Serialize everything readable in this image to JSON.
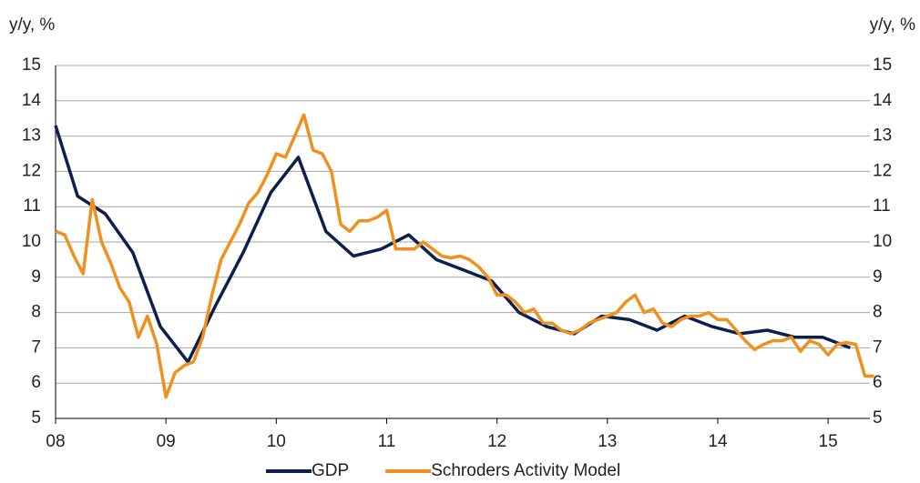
{
  "chart_data": {
    "type": "line",
    "y_label": "y/y, %",
    "y2_label": "y/y, %",
    "xlim": [
      2008,
      2015.42
    ],
    "xticks": [
      {
        "value": 2008,
        "label": "08"
      },
      {
        "value": 2009,
        "label": "09"
      },
      {
        "value": 2010,
        "label": "10"
      },
      {
        "value": 2011,
        "label": "11"
      },
      {
        "value": 2012,
        "label": "12"
      },
      {
        "value": 2013,
        "label": "13"
      },
      {
        "value": 2014,
        "label": "14"
      },
      {
        "value": 2015,
        "label": "15"
      }
    ],
    "ylim": [
      5,
      15
    ],
    "yticks": [
      5,
      6,
      7,
      8,
      9,
      10,
      11,
      12,
      13,
      14,
      15
    ],
    "y2lim": [
      5,
      15
    ],
    "y2ticks": [
      5,
      6,
      7,
      8,
      9,
      10,
      11,
      12,
      13,
      14,
      15
    ],
    "grid": true,
    "legend": "bottom",
    "series": [
      {
        "name": "GDP",
        "color": "#0d1f4f",
        "x": [
          2008,
          2008.2,
          2008.45,
          2008.7,
          2008.95,
          2009.2,
          2009.45,
          2009.7,
          2009.95,
          2010.2,
          2010.45,
          2010.7,
          2010.95,
          2011.2,
          2011.45,
          2011.7,
          2011.95,
          2012.2,
          2012.45,
          2012.7,
          2012.95,
          2013.2,
          2013.45,
          2013.7,
          2013.95,
          2014.2,
          2014.45,
          2014.7,
          2014.95,
          2015.2
        ],
        "values": [
          13.3,
          11.3,
          10.8,
          9.7,
          7.6,
          6.6,
          8.2,
          9.7,
          11.4,
          12.4,
          10.3,
          9.6,
          9.8,
          10.2,
          9.5,
          9.2,
          8.9,
          8.0,
          7.6,
          7.4,
          7.9,
          7.8,
          7.5,
          7.9,
          7.6,
          7.4,
          7.5,
          7.3,
          7.3,
          7.0
        ]
      },
      {
        "name": "Schroders Activity Model",
        "color": "#f0901e",
        "x": [
          2008,
          2008.083,
          2008.167,
          2008.25,
          2008.333,
          2008.417,
          2008.5,
          2008.583,
          2008.667,
          2008.75,
          2008.833,
          2008.917,
          2009,
          2009.083,
          2009.167,
          2009.25,
          2009.333,
          2009.417,
          2009.5,
          2009.583,
          2009.667,
          2009.75,
          2009.833,
          2009.917,
          2010,
          2010.083,
          2010.167,
          2010.25,
          2010.333,
          2010.417,
          2010.5,
          2010.583,
          2010.667,
          2010.75,
          2010.833,
          2010.917,
          2011,
          2011.083,
          2011.167,
          2011.25,
          2011.333,
          2011.417,
          2011.5,
          2011.583,
          2011.667,
          2011.75,
          2011.833,
          2011.917,
          2012,
          2012.083,
          2012.167,
          2012.25,
          2012.333,
          2012.417,
          2012.5,
          2012.583,
          2012.667,
          2012.75,
          2012.833,
          2012.917,
          2013,
          2013.083,
          2013.167,
          2013.25,
          2013.333,
          2013.417,
          2013.5,
          2013.583,
          2013.667,
          2013.75,
          2013.833,
          2013.917,
          2014,
          2014.083,
          2014.167,
          2014.25,
          2014.333,
          2014.417,
          2014.5,
          2014.583,
          2014.667,
          2014.75,
          2014.833,
          2014.917,
          2015,
          2015.083,
          2015.167,
          2015.25,
          2015.333,
          2015.417
        ],
        "values": [
          10.3,
          10.2,
          9.6,
          9.1,
          11.2,
          10.0,
          9.4,
          8.7,
          8.3,
          7.3,
          7.9,
          7.1,
          5.6,
          6.3,
          6.5,
          6.6,
          7.3,
          8.5,
          9.5,
          10.0,
          10.5,
          11.1,
          11.4,
          11.9,
          12.5,
          12.4,
          13.0,
          13.6,
          12.6,
          12.5,
          12.0,
          10.5,
          10.3,
          10.6,
          10.6,
          10.7,
          10.9,
          9.8,
          9.8,
          9.8,
          10.0,
          9.8,
          9.6,
          9.55,
          9.6,
          9.5,
          9.3,
          9.0,
          8.5,
          8.5,
          8.3,
          8.0,
          8.1,
          7.7,
          7.7,
          7.5,
          7.4,
          7.5,
          7.7,
          7.8,
          7.9,
          8.0,
          8.3,
          8.5,
          8.0,
          8.1,
          7.7,
          7.6,
          7.8,
          7.9,
          7.9,
          8.0,
          7.8,
          7.8,
          7.5,
          7.2,
          6.95,
          7.1,
          7.2,
          7.2,
          7.3,
          6.9,
          7.2,
          7.1,
          6.8,
          7.1,
          7.15,
          7.1,
          6.2,
          6.2
        ]
      }
    ]
  }
}
